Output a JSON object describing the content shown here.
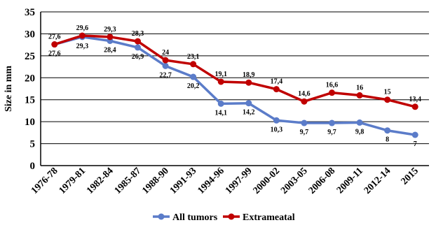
{
  "chart_data": {
    "type": "line",
    "ylabel": "Size in mm",
    "xlabel": "",
    "ylim": [
      0,
      35
    ],
    "yticks": [
      "0",
      "5",
      "10",
      "15",
      "20",
      "25",
      "30",
      "35"
    ],
    "categories": [
      "1976-78",
      "1979-81",
      "1982-84",
      "1985-87",
      "1988-90",
      "1991-93",
      "1994-96",
      "1997-99",
      "2000-02",
      "2003-05",
      "2006-08",
      "2009-11",
      "2012-14",
      "2015"
    ],
    "grid": "horizontal",
    "legend_position": "bottom",
    "series": [
      {
        "name": "All tumors",
        "color": "#5B7CC9",
        "values": [
          27.6,
          29.3,
          28.4,
          26.9,
          22.7,
          20.2,
          14.1,
          14.2,
          10.3,
          9.7,
          9.7,
          9.8,
          8,
          7
        ],
        "labels": [
          "27,6",
          "29,3",
          "28,4",
          "26,9",
          "22,7",
          "20,2",
          "14,1",
          "14,2",
          "10,3",
          "9,7",
          "9,7",
          "9,8",
          "8",
          "7"
        ]
      },
      {
        "name": "Extrameatal",
        "color": "#C00000",
        "values": [
          27.6,
          29.6,
          29.3,
          28.3,
          24,
          23.1,
          19.1,
          18.9,
          17.4,
          14.6,
          16.6,
          16,
          15,
          13.4
        ],
        "labels": [
          "27,6",
          "29,6",
          "29,3",
          "28,3",
          "24",
          "23,1",
          "19,1",
          "18,9",
          "17,4",
          "14,6",
          "16,6",
          "16",
          "15",
          "13,4"
        ]
      }
    ]
  }
}
